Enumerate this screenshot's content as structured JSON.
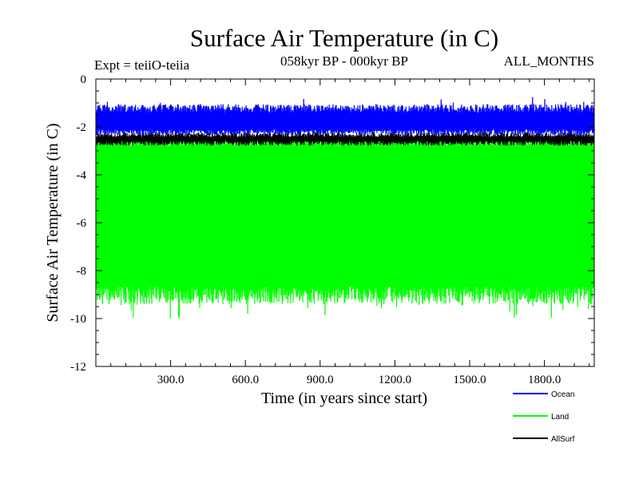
{
  "chart_data": {
    "type": "line",
    "title": "Surface Air Temperature (in C)",
    "subtitle": "058kyr BP - 000kyr BP",
    "left_note": "Expt = teiiO-teiia",
    "right_note": "ALL_MONTHS",
    "xlabel": "Time (in years since start)",
    "ylabel": "Surface Air Temperature (in C)",
    "xlim": [
      0,
      2000
    ],
    "ylim": [
      -12,
      0
    ],
    "x_ticks": [
      300,
      600,
      900,
      1200,
      1500,
      1800
    ],
    "x_tick_labels": [
      "300.0",
      "600.0",
      "900.0",
      "1200.0",
      "1500.0",
      "1800.0"
    ],
    "y_ticks": [
      0,
      -2,
      -4,
      -6,
      -8,
      -10,
      -12
    ],
    "y_tick_labels": [
      "0",
      "-2",
      "-4",
      "-6",
      "-8",
      "-10",
      "-12"
    ],
    "legend_position": "bottom-right, below plot",
    "series": [
      {
        "name": "Land",
        "color": "#00ff00",
        "min_approx": -10.3,
        "max_approx": -2.2,
        "mean_approx": -6.0,
        "style": "dense seasonal oscillation"
      },
      {
        "name": "AllSurf",
        "color": "#000000",
        "min_approx": -2.8,
        "max_approx": -2.2,
        "mean_approx": -2.5
      },
      {
        "name": "Ocean",
        "color": "#0000ff",
        "min_approx": -2.6,
        "max_approx": -0.8,
        "mean_approx": -1.5
      }
    ],
    "legend_order": [
      "Ocean",
      "Land",
      "AllSurf"
    ]
  }
}
